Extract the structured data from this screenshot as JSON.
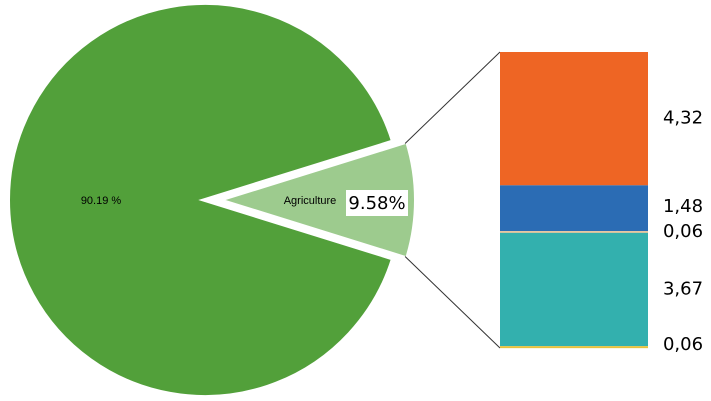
{
  "chart_data": {
    "type": "pie-of-bar",
    "pie": {
      "categories": [
        null,
        "Agriculture"
      ],
      "values": [
        90.19,
        9.58
      ],
      "value_labels": [
        "90.19 %",
        "9.58%"
      ],
      "colors": [
        "#52a03a",
        "#9dcb8e"
      ]
    },
    "bar": {
      "values": [
        4.32,
        1.48,
        0.06,
        3.67,
        0.06
      ],
      "value_labels": [
        "4,32",
        "1,48",
        "0,06",
        "3,67",
        "0,06"
      ],
      "colors": [
        "#ee6524",
        "#2b6cb4",
        "#e7c6a0",
        "#33b0ae",
        "#e8c23c"
      ]
    }
  }
}
